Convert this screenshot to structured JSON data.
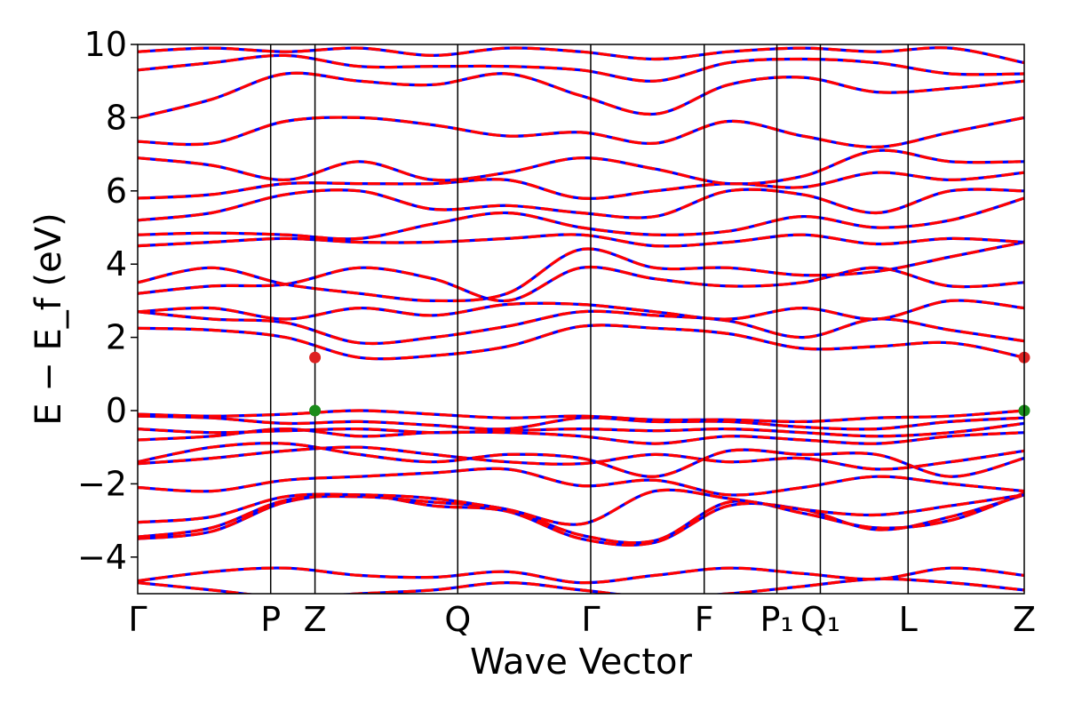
{
  "chart_data": {
    "type": "line",
    "title": "",
    "xlabel": "Wave Vector",
    "ylabel": "E − E_f (eV)",
    "ylim": [
      -5,
      10
    ],
    "yticks": [
      -4,
      -2,
      0,
      2,
      4,
      6,
      8,
      10
    ],
    "ytick_labels": [
      "−4",
      "−2",
      "0",
      "2",
      "4",
      "6",
      "8",
      "10"
    ],
    "grid": false,
    "kpath_length": 1.0,
    "high_symmetry_points": [
      {
        "label": "Γ",
        "k": 0.0
      },
      {
        "label": "P",
        "k": 0.15
      },
      {
        "label": "Z",
        "k": 0.2
      },
      {
        "label": "Q",
        "k": 0.361
      },
      {
        "label": "Γ",
        "k": 0.511
      },
      {
        "label": "F",
        "k": 0.639
      },
      {
        "label": "P₁",
        "k": 0.721
      },
      {
        "label": "Q₁",
        "k": 0.77
      },
      {
        "label": "L",
        "k": 0.869
      },
      {
        "label": "Z",
        "k": 1.0
      }
    ],
    "line_colors": {
      "primary": "#ff0000",
      "overlay": "#0000ff"
    },
    "markers": [
      {
        "name": "CBM",
        "k": 0.2,
        "E": 1.45,
        "color": "#dd2222"
      },
      {
        "name": "CBM",
        "k": 1.0,
        "E": 1.45,
        "color": "#dd2222"
      },
      {
        "name": "VBM",
        "k": 0.2,
        "E": 0.0,
        "color": "#1a8c1a"
      },
      {
        "name": "VBM",
        "k": 1.0,
        "E": 0.0,
        "color": "#1a8c1a"
      }
    ],
    "bands": [
      {
        "values": [
          -4.7,
          -4.9,
          -5.1,
          -5.0,
          -4.9,
          -4.7,
          -4.9,
          -5.1,
          -5.0,
          -4.8,
          -4.6,
          -4.7,
          -4.9
        ]
      },
      {
        "values": [
          -4.65,
          -4.4,
          -4.3,
          -4.5,
          -4.55,
          -4.4,
          -4.7,
          -4.5,
          -4.3,
          -4.45,
          -4.6,
          -4.3,
          -4.5
        ]
      },
      {
        "values": [
          -3.5,
          -3.3,
          -2.5,
          -2.3,
          -2.6,
          -2.75,
          -3.5,
          -3.6,
          -2.6,
          -2.7,
          -3.25,
          -2.9,
          -2.3
        ]
      },
      {
        "values": [
          -3.45,
          -3.2,
          -2.45,
          -2.35,
          -2.5,
          -2.7,
          -3.4,
          -3.55,
          -2.5,
          -2.8,
          -3.2,
          -3.0,
          -2.25
        ]
      },
      {
        "values": [
          -3.05,
          -2.9,
          -2.35,
          -2.3,
          -2.4,
          -2.7,
          -3.1,
          -2.2,
          -2.4,
          -2.7,
          -2.85,
          -2.6,
          -2.3
        ]
      },
      {
        "values": [
          -2.1,
          -2.2,
          -1.9,
          -1.8,
          -1.7,
          -1.6,
          -2.05,
          -1.9,
          -2.3,
          -2.1,
          -1.8,
          -2.0,
          -2.2
        ]
      },
      {
        "values": [
          -1.45,
          -1.3,
          -1.1,
          -1.0,
          -1.2,
          -1.4,
          -1.45,
          -1.2,
          -1.4,
          -1.3,
          -1.6,
          -1.4,
          -1.1
        ]
      },
      {
        "values": [
          -1.4,
          -1.0,
          -0.9,
          -1.2,
          -1.4,
          -1.2,
          -1.3,
          -1.8,
          -1.1,
          -1.2,
          -1.2,
          -1.8,
          -1.3
        ]
      },
      {
        "values": [
          -0.8,
          -0.7,
          -0.5,
          -0.7,
          -0.6,
          -0.6,
          -0.7,
          -0.9,
          -0.7,
          -0.8,
          -0.9,
          -0.7,
          -0.6
        ]
      },
      {
        "values": [
          -0.5,
          -0.6,
          -0.55,
          -0.5,
          -0.6,
          -0.55,
          -0.5,
          -0.55,
          -0.5,
          -0.6,
          -0.7,
          -0.6,
          -0.35
        ]
      },
      {
        "values": [
          -0.15,
          -0.2,
          -0.35,
          -0.3,
          -0.4,
          -0.5,
          -0.2,
          -0.3,
          -0.3,
          -0.45,
          -0.5,
          -0.3,
          -0.2
        ]
      },
      {
        "values": [
          -0.1,
          -0.15,
          -0.1,
          0.0,
          -0.1,
          -0.2,
          -0.15,
          -0.25,
          -0.25,
          -0.3,
          -0.2,
          -0.15,
          0.0
        ]
      },
      {
        "values": [
          2.25,
          2.2,
          2.0,
          1.45,
          1.5,
          1.75,
          2.3,
          2.25,
          2.1,
          1.7,
          1.75,
          1.85,
          1.45
        ]
      },
      {
        "values": [
          2.7,
          2.5,
          2.4,
          1.85,
          2.0,
          2.3,
          2.7,
          2.6,
          2.45,
          2.0,
          2.5,
          2.2,
          1.9
        ]
      },
      {
        "values": [
          2.7,
          2.8,
          2.5,
          2.8,
          2.6,
          2.9,
          2.9,
          2.7,
          2.5,
          2.8,
          2.5,
          3.0,
          2.8
        ]
      },
      {
        "values": [
          3.2,
          3.4,
          3.45,
          3.9,
          3.6,
          3.0,
          3.9,
          3.6,
          3.4,
          3.5,
          3.9,
          3.4,
          3.5
        ]
      },
      {
        "values": [
          3.5,
          3.9,
          3.45,
          3.2,
          3.0,
          3.2,
          4.4,
          3.9,
          3.9,
          3.7,
          3.8,
          4.2,
          4.6
        ]
      },
      {
        "values": [
          4.5,
          4.6,
          4.7,
          4.6,
          4.6,
          4.7,
          4.8,
          4.5,
          4.6,
          4.8,
          4.55,
          4.7,
          4.6
        ]
      },
      {
        "values": [
          4.8,
          4.85,
          4.8,
          4.7,
          5.1,
          5.4,
          5.0,
          4.8,
          4.9,
          5.3,
          5.0,
          5.2,
          5.8
        ]
      },
      {
        "values": [
          5.2,
          5.4,
          5.9,
          6.0,
          5.5,
          5.6,
          5.4,
          5.3,
          6.0,
          5.9,
          5.4,
          6.0,
          6.0
        ]
      },
      {
        "values": [
          5.8,
          5.9,
          6.2,
          6.2,
          6.2,
          6.3,
          5.8,
          6.0,
          6.2,
          6.1,
          6.5,
          6.3,
          6.5
        ]
      },
      {
        "values": [
          6.9,
          6.7,
          6.3,
          6.8,
          6.3,
          6.5,
          6.9,
          6.6,
          6.2,
          6.4,
          7.1,
          6.8,
          6.8
        ]
      },
      {
        "values": [
          7.35,
          7.3,
          7.9,
          8.0,
          7.8,
          7.5,
          7.6,
          7.3,
          7.9,
          7.5,
          7.2,
          7.6,
          8.0
        ]
      },
      {
        "values": [
          8.0,
          8.5,
          9.2,
          9.0,
          8.9,
          9.2,
          8.6,
          8.1,
          8.9,
          9.1,
          8.7,
          8.8,
          9.0
        ]
      },
      {
        "values": [
          9.3,
          9.5,
          9.7,
          9.4,
          9.4,
          9.4,
          9.3,
          9.0,
          9.5,
          9.6,
          9.5,
          9.2,
          9.2
        ]
      },
      {
        "values": [
          9.8,
          9.9,
          9.8,
          9.9,
          9.7,
          9.9,
          9.8,
          9.6,
          9.8,
          9.9,
          9.8,
          9.9,
          9.5
        ]
      }
    ]
  }
}
